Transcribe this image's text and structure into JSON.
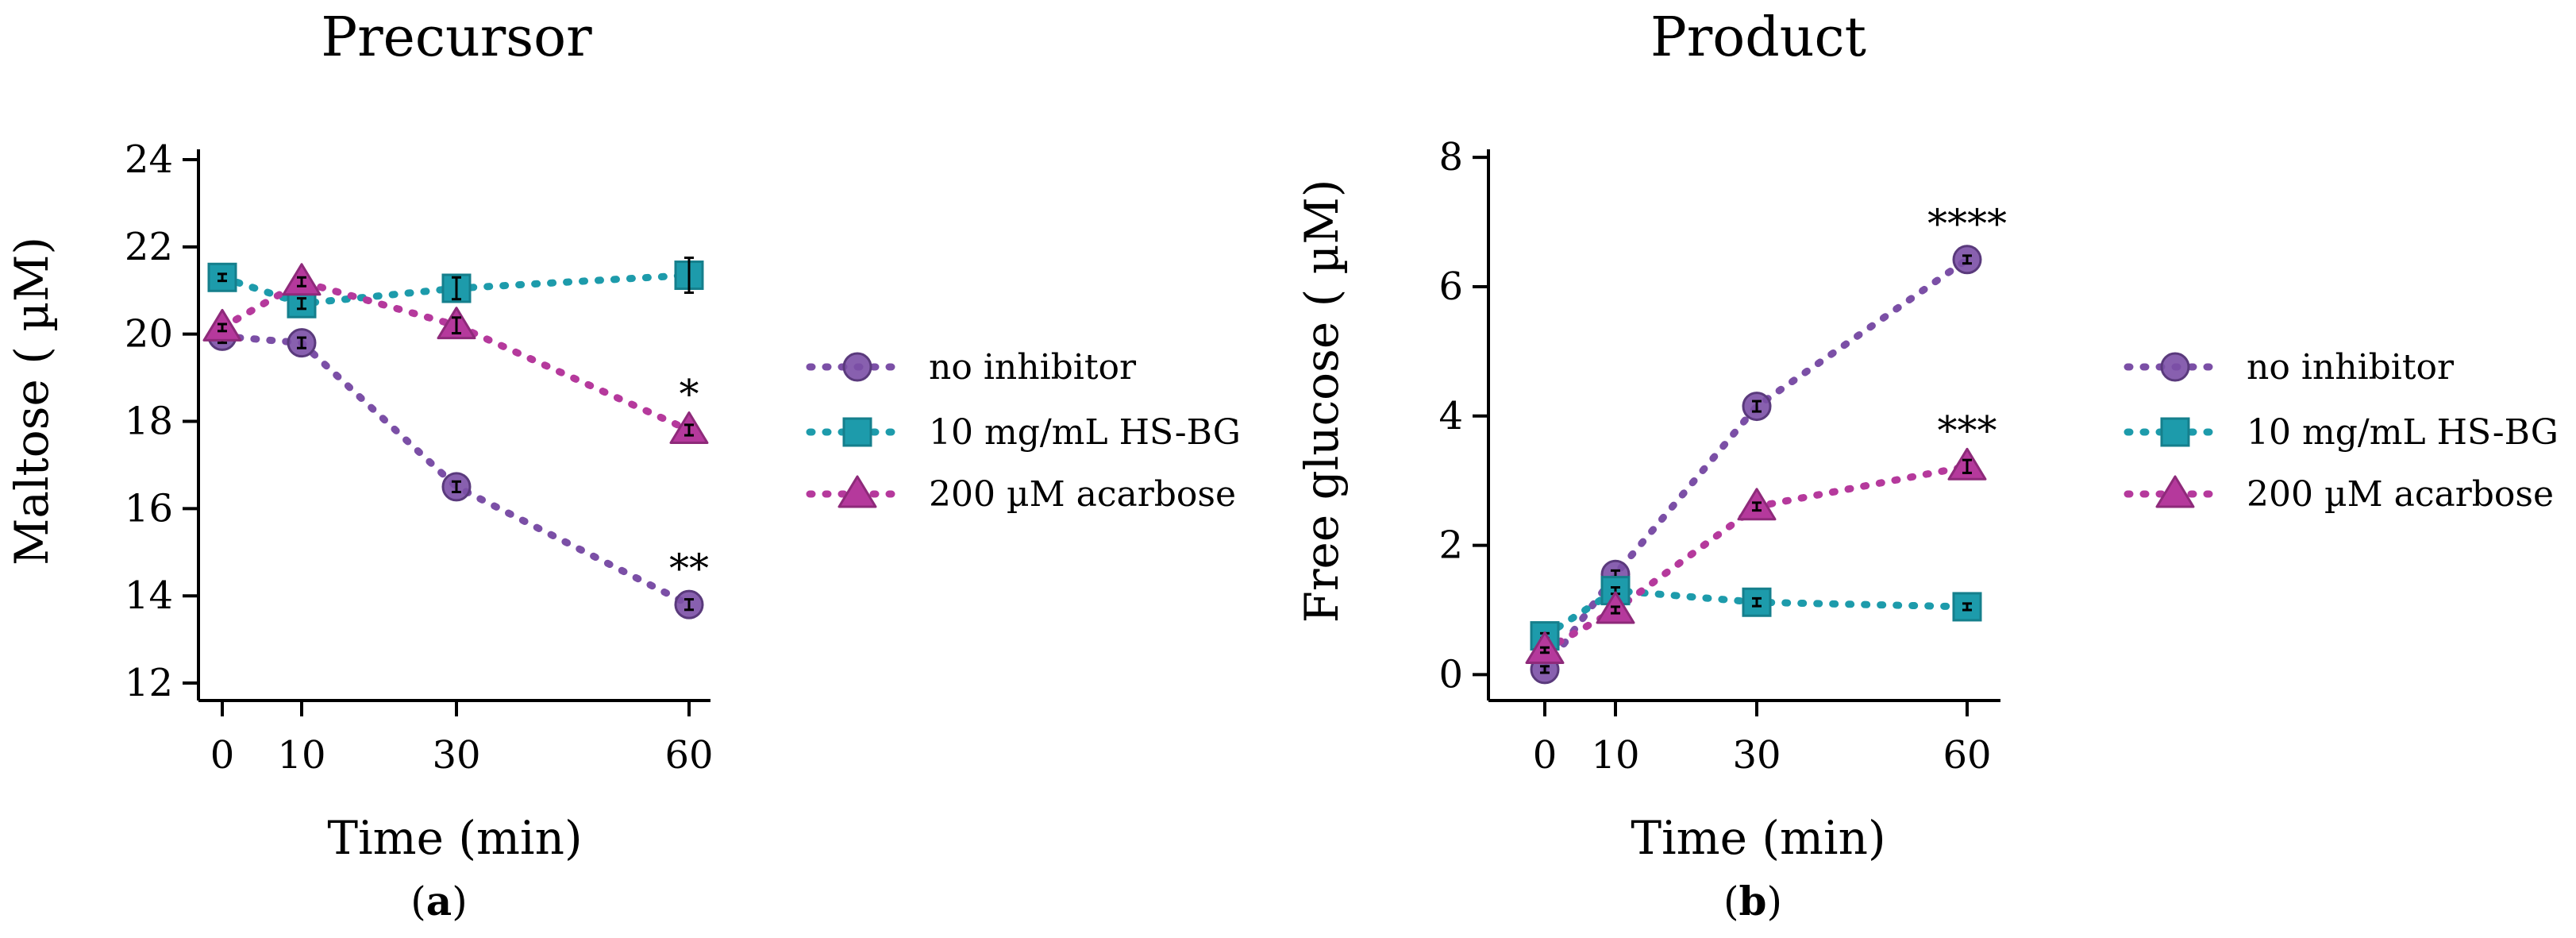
{
  "chart_data": [
    {
      "type": "line",
      "title": "Precursor",
      "xlabel": "Time (min)",
      "ylabel": "Maltose ( µM)",
      "panel_label": "a",
      "x": [
        0,
        10,
        30,
        60
      ],
      "x_tick_labels": [
        "0",
        "10",
        "30",
        "60"
      ],
      "ylim": [
        11.6,
        24.2
      ],
      "y_ticks": [
        12,
        14,
        16,
        18,
        20,
        22,
        24
      ],
      "y_tick_labels": [
        "12",
        "14",
        "16",
        "18",
        "20",
        "22",
        "24"
      ],
      "series": [
        {
          "name": "no inhibitor",
          "color": "#7b4fa6",
          "marker": "circle",
          "values": [
            19.95,
            19.8,
            16.5,
            13.8
          ],
          "errors": [
            0.15,
            0.12,
            0.12,
            0.12
          ]
        },
        {
          "name": "10 mg/mL HS-BG",
          "color": "#1d9bab",
          "marker": "square",
          "values": [
            21.3,
            20.7,
            21.05,
            21.35
          ],
          "errors": [
            0.08,
            0.12,
            0.25,
            0.4
          ]
        },
        {
          "name": "200 µM acarbose",
          "color": "#b5399c",
          "marker": "triangle",
          "values": [
            20.15,
            21.2,
            20.2,
            17.8
          ],
          "errors": [
            0.08,
            0.1,
            0.18,
            0.12
          ]
        }
      ],
      "annotations": [
        {
          "x": 60,
          "y": 13.8,
          "text": "**"
        },
        {
          "x": 60,
          "y": 17.8,
          "text": "*"
        }
      ],
      "legend": {
        "position": "right",
        "entries": [
          "no inhibitor",
          "10 mg/mL HS-BG",
          "200 µM acarbose"
        ]
      }
    },
    {
      "type": "line",
      "title": "Product",
      "xlabel": "Time (min)",
      "ylabel": "Free glucose ( µM)",
      "panel_label": "b",
      "x": [
        0,
        10,
        30,
        60
      ],
      "x_tick_labels": [
        "0",
        "10",
        "30",
        "60"
      ],
      "ylim": [
        -0.4,
        8.1
      ],
      "y_ticks": [
        0,
        2,
        4,
        6,
        8
      ],
      "y_tick_labels": [
        "0",
        "2",
        "4",
        "6",
        "8"
      ],
      "series": [
        {
          "name": "no inhibitor",
          "color": "#7b4fa6",
          "marker": "circle",
          "values": [
            0.08,
            1.55,
            4.15,
            6.42
          ],
          "errors": [
            0.05,
            0.06,
            0.08,
            0.06
          ]
        },
        {
          "name": "10 mg/mL HS-BG",
          "color": "#1d9bab",
          "marker": "square",
          "values": [
            0.6,
            1.3,
            1.12,
            1.05
          ],
          "errors": [
            0.04,
            0.05,
            0.06,
            0.05
          ]
        },
        {
          "name": "200 µM acarbose",
          "color": "#b5399c",
          "marker": "triangle",
          "values": [
            0.38,
            1.0,
            2.6,
            3.22
          ],
          "errors": [
            0.04,
            0.05,
            0.06,
            0.1
          ]
        }
      ],
      "annotations": [
        {
          "x": 60,
          "y": 6.42,
          "text": "****"
        },
        {
          "x": 60,
          "y": 3.22,
          "text": "***"
        }
      ],
      "legend": {
        "position": "right",
        "entries": [
          "no inhibitor",
          "10 mg/mL HS-BG",
          "200 µM acarbose"
        ]
      }
    }
  ]
}
